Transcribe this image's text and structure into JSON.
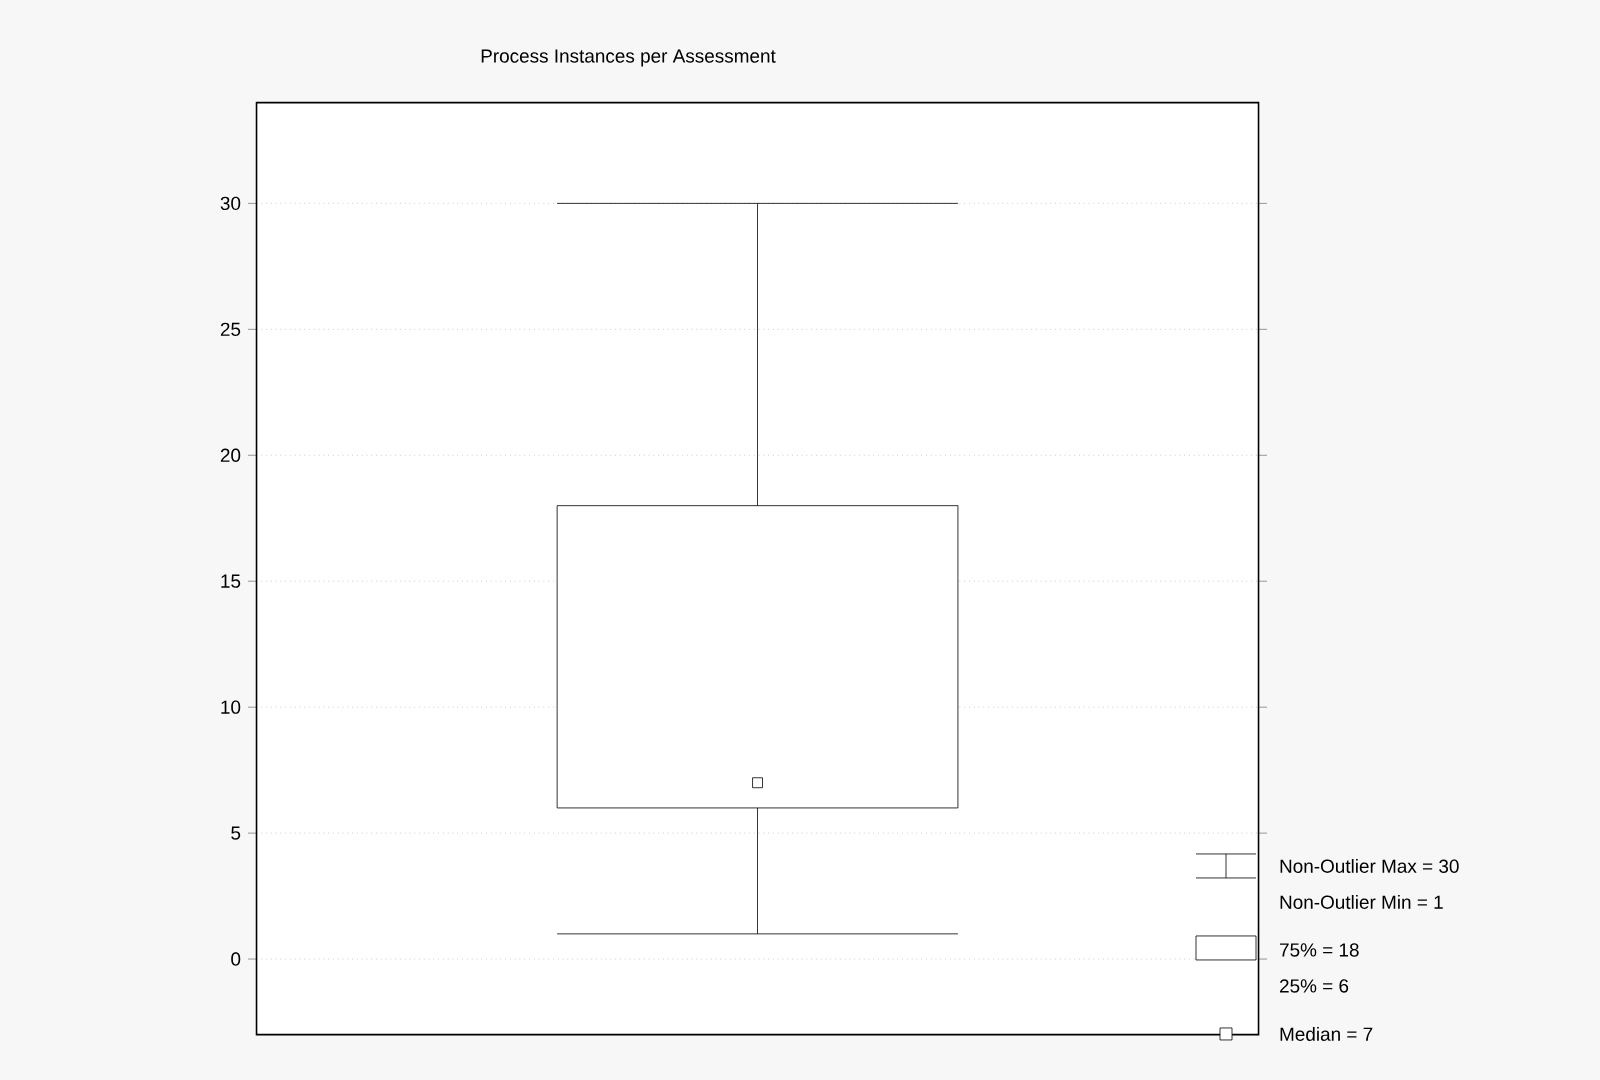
{
  "chart_data": {
    "type": "box",
    "title": "Process Instances per Assessment",
    "categories": [
      null
    ],
    "boxes": [
      {
        "low": 1,
        "q1": 6,
        "median": 7,
        "q3": 18,
        "high": 30
      }
    ],
    "ylim": [
      -3,
      34
    ],
    "yticks": [
      0,
      5,
      10,
      15,
      20,
      25,
      30
    ],
    "grid": "y",
    "annotations": [
      "Non-Outlier Max = 30",
      "Non-Outlier Min = 1",
      "75% = 18",
      "25% = 6",
      "Median = 7"
    ]
  }
}
